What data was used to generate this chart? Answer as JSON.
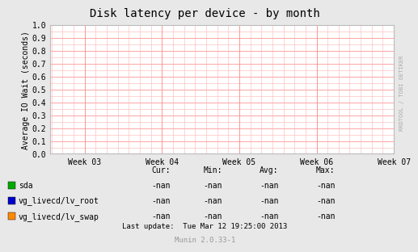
{
  "title": "Disk latency per device - by month",
  "ylabel": "Average IO Wait (seconds)",
  "ylim": [
    0.0,
    1.0
  ],
  "yticks": [
    0.0,
    0.1,
    0.2,
    0.3,
    0.4,
    0.5,
    0.6,
    0.7,
    0.8,
    0.9,
    1.0
  ],
  "xtick_labels": [
    "Week 03",
    "Week 04",
    "Week 05",
    "Week 06",
    "Week 07"
  ],
  "xtick_positions": [
    0.1,
    0.325,
    0.55,
    0.775,
    1.0
  ],
  "bg_color": "#e8e8e8",
  "plot_bg_color": "#ffffff",
  "grid_color_minor": "#ffb3b3",
  "grid_color_major": "#ff8080",
  "legend_items": [
    {
      "label": "sda",
      "color": "#00aa00"
    },
    {
      "label": "vg_livecd/lv_root",
      "color": "#0000cc"
    },
    {
      "label": "vg_livecd/lv_swap",
      "color": "#ff8800"
    }
  ],
  "stats_headers": [
    "Cur:",
    "Min:",
    "Avg:",
    "Max:"
  ],
  "stats_values": [
    "-nan",
    "-nan",
    "-nan",
    "-nan"
  ],
  "footer": "Last update:  Tue Mar 12 19:25:00 2013",
  "munin_version": "Munin 2.0.33-1",
  "watermark": "RRDTOOL / TOBI OETIKER",
  "title_fontsize": 10,
  "axis_label_fontsize": 7,
  "tick_fontsize": 7,
  "legend_fontsize": 7,
  "footer_fontsize": 6.5,
  "watermark_fontsize": 5
}
